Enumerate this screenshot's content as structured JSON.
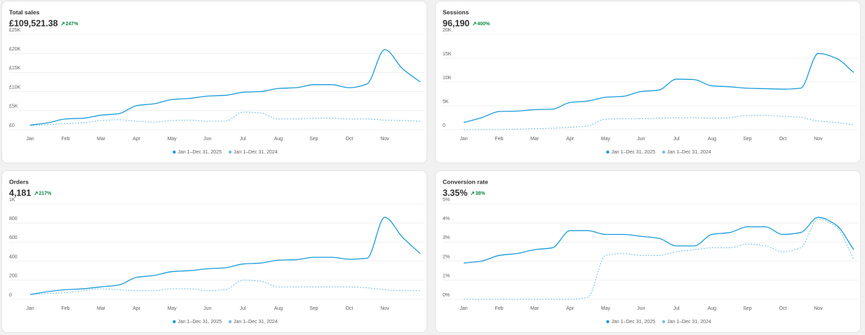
{
  "chart_data": [
    {
      "type": "line",
      "title": "Total sales",
      "value": "£109,521.38",
      "change": "247%",
      "categories": [
        "Jan",
        null,
        "Feb",
        null,
        "Mar",
        null,
        "Apr",
        null,
        "May",
        null,
        "Jun",
        null,
        "Jul",
        null,
        "Aug",
        null,
        "Sep",
        null,
        "Oct",
        null,
        "Nov",
        null,
        null
      ],
      "series": [
        {
          "name": "Jan 1–Dec 31, 2025",
          "color": "#1a9bd9",
          "style": "solid",
          "values": [
            1200,
            1800,
            2800,
            3000,
            3800,
            4200,
            6300,
            6800,
            7900,
            8200,
            8800,
            9000,
            9800,
            10000,
            10800,
            11000,
            11800,
            11800,
            11000,
            12000,
            21000,
            16000,
            12500
          ]
        },
        {
          "name": "Jan 1–Dec 31, 2024",
          "color": "#74c0e8",
          "style": "dashed",
          "values": [
            1100,
            1300,
            1600,
            1800,
            2400,
            2600,
            2200,
            2000,
            2400,
            2500,
            2200,
            2200,
            4600,
            4400,
            2800,
            2800,
            3000,
            3000,
            2800,
            2800,
            2500,
            2400,
            2200
          ]
        }
      ],
      "ylim": [
        0,
        25000
      ],
      "yticks": [
        {
          "value": 0,
          "label": "£0"
        },
        {
          "value": 5000,
          "label": "£5K"
        },
        {
          "value": 10000,
          "label": "£10K"
        },
        {
          "value": 15000,
          "label": "£15K"
        },
        {
          "value": 20000,
          "label": "£20K"
        },
        {
          "value": 25000,
          "label": "£25K"
        }
      ],
      "grid": true
    },
    {
      "type": "line",
      "title": "Sessions",
      "value": "96,190",
      "change": "400%",
      "categories": [
        "Jan",
        null,
        "Feb",
        null,
        "Mar",
        null,
        "Apr",
        null,
        "May",
        null,
        "Jun",
        null,
        "Jul",
        null,
        "Aug",
        null,
        "Sep",
        null,
        "Oct",
        null,
        "Nov",
        null,
        null
      ],
      "series": [
        {
          "name": "Jan 1–Dec 31, 2025",
          "color": "#1a9bd9",
          "style": "solid",
          "values": [
            1500,
            2500,
            3800,
            3900,
            4200,
            4300,
            5700,
            6000,
            6800,
            7000,
            8000,
            8300,
            10600,
            10500,
            9200,
            9000,
            8700,
            8600,
            8500,
            8700,
            16000,
            15000,
            12000
          ]
        },
        {
          "name": "Jan 1–Dec 31, 2024",
          "color": "#74c0e8",
          "style": "dashed",
          "values": [
            0,
            0,
            0,
            100,
            200,
            300,
            500,
            800,
            2200,
            2300,
            2300,
            2400,
            2500,
            2500,
            2400,
            2500,
            3000,
            3000,
            2800,
            2600,
            1800,
            1500,
            1000
          ]
        }
      ],
      "ylim": [
        0,
        20000
      ],
      "yticks": [
        0,
        {
          "value": 5000,
          "label": "5K"
        },
        {
          "value": 10000,
          "label": "10K"
        },
        {
          "value": 15000,
          "label": "15K"
        },
        {
          "value": 20000,
          "label": "20K"
        }
      ],
      "grid": true
    },
    {
      "type": "line",
      "title": "Orders",
      "value": "4,181",
      "change": "217%",
      "categories": [
        "Jan",
        null,
        "Feb",
        null,
        "Mar",
        null,
        "Apr",
        null,
        "May",
        null,
        "Jun",
        null,
        "Jul",
        null,
        "Aug",
        null,
        "Sep",
        null,
        "Oct",
        null,
        "Nov",
        null,
        null
      ],
      "series": [
        {
          "name": "Jan 1–Dec 31, 2025",
          "color": "#1a9bd9",
          "style": "solid",
          "values": [
            50,
            80,
            100,
            110,
            130,
            150,
            230,
            250,
            290,
            300,
            320,
            330,
            370,
            380,
            410,
            415,
            440,
            440,
            420,
            430,
            860,
            650,
            480
          ]
        },
        {
          "name": "Jan 1–Dec 31, 2024",
          "color": "#74c0e8",
          "style": "dashed",
          "values": [
            50,
            60,
            70,
            90,
            110,
            100,
            90,
            90,
            110,
            110,
            90,
            100,
            200,
            190,
            130,
            130,
            130,
            130,
            130,
            120,
            100,
            90,
            90
          ]
        }
      ],
      "ylim": [
        0,
        1000
      ],
      "yticks": [
        0,
        200,
        400,
        600,
        800,
        {
          "value": 1000,
          "label": "1K"
        }
      ],
      "grid": true
    },
    {
      "type": "line",
      "title": "Conversion rate",
      "value": "3.35%",
      "change": "38%",
      "categories": [
        "Jan",
        null,
        "Feb",
        null,
        "Mar",
        null,
        "Apr",
        null,
        "May",
        null,
        "Jun",
        null,
        "Jul",
        null,
        "Aug",
        null,
        "Sep",
        null,
        "Oct",
        null,
        "Nov",
        null,
        null
      ],
      "series": [
        {
          "name": "Jan 1–Dec 31, 2025",
          "color": "#1a9bd9",
          "style": "solid",
          "values": [
            1.9,
            2.0,
            2.3,
            2.4,
            2.6,
            2.7,
            3.6,
            3.6,
            3.4,
            3.4,
            3.3,
            3.2,
            2.8,
            2.8,
            3.4,
            3.5,
            3.8,
            3.8,
            3.4,
            3.5,
            4.3,
            3.9,
            2.6
          ]
        },
        {
          "name": "Jan 1–Dec 31, 2024",
          "color": "#74c0e8",
          "style": "dashed",
          "values": [
            0,
            0,
            0,
            0,
            0,
            0,
            0,
            0.1,
            2.3,
            2.4,
            2.3,
            2.3,
            2.5,
            2.6,
            2.7,
            2.7,
            2.9,
            2.8,
            2.5,
            2.7,
            4.2,
            3.8,
            2.1
          ]
        }
      ],
      "ylim": [
        0,
        5
      ],
      "yticks": [
        {
          "value": 0,
          "label": "0%"
        },
        {
          "value": 1,
          "label": "1%"
        },
        {
          "value": 2,
          "label": "2%"
        },
        {
          "value": 3,
          "label": "3%"
        },
        {
          "value": 4,
          "label": "4%"
        },
        {
          "value": 5,
          "label": "5%"
        }
      ],
      "grid": true
    }
  ]
}
